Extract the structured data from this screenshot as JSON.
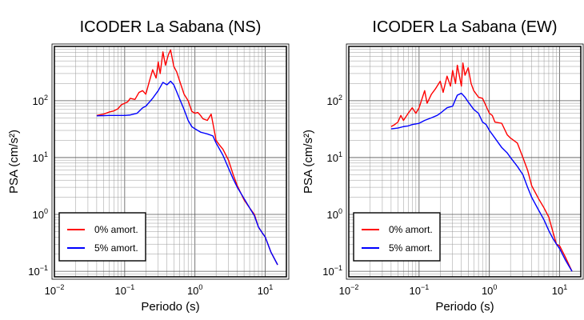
{
  "chart_data": [
    {
      "type": "line",
      "title": "ICODER La Sabana (NS)",
      "xlabel": "Periodo (s)",
      "ylabel": "PSA (cm/s²)",
      "xscale": "log",
      "yscale": "log",
      "xlim": [
        0.01,
        20
      ],
      "ylim": [
        0.08,
        900
      ],
      "grid": true,
      "legend_position": "bottom-left",
      "xticks": [
        {
          "base": "10",
          "exp": "−2",
          "v": 0.01
        },
        {
          "base": "10",
          "exp": "−1",
          "v": 0.1
        },
        {
          "base": "10",
          "exp": "0",
          "v": 1
        },
        {
          "base": "10",
          "exp": "1",
          "v": 10
        }
      ],
      "yticks": [
        {
          "base": "10",
          "exp": "−1",
          "v": 0.1
        },
        {
          "base": "10",
          "exp": "0",
          "v": 1
        },
        {
          "base": "10",
          "exp": "1",
          "v": 10
        },
        {
          "base": "10",
          "exp": "2",
          "v": 100
        }
      ],
      "series": [
        {
          "name": "0% amort.",
          "color": "#ff0000",
          "points": [
            [
              0.04,
              55
            ],
            [
              0.05,
              58
            ],
            [
              0.06,
              63
            ],
            [
              0.07,
              66
            ],
            [
              0.08,
              72
            ],
            [
              0.09,
              85
            ],
            [
              0.1,
              90
            ],
            [
              0.11,
              95
            ],
            [
              0.12,
              110
            ],
            [
              0.14,
              105
            ],
            [
              0.16,
              140
            ],
            [
              0.18,
              150
            ],
            [
              0.2,
              130
            ],
            [
              0.22,
              200
            ],
            [
              0.25,
              350
            ],
            [
              0.28,
              250
            ],
            [
              0.3,
              480
            ],
            [
              0.32,
              300
            ],
            [
              0.35,
              720
            ],
            [
              0.38,
              420
            ],
            [
              0.42,
              650
            ],
            [
              0.45,
              780
            ],
            [
              0.5,
              400
            ],
            [
              0.55,
              320
            ],
            [
              0.6,
              230
            ],
            [
              0.7,
              130
            ],
            [
              0.8,
              100
            ],
            [
              0.9,
              65
            ],
            [
              1.0,
              60
            ],
            [
              1.1,
              62
            ],
            [
              1.2,
              55
            ],
            [
              1.3,
              48
            ],
            [
              1.5,
              45
            ],
            [
              1.7,
              58
            ],
            [
              1.8,
              40
            ],
            [
              2.0,
              20
            ],
            [
              2.2,
              17
            ],
            [
              2.5,
              14
            ],
            [
              3.0,
              9
            ],
            [
              3.5,
              5
            ],
            [
              4.0,
              3.2
            ],
            [
              5.0,
              1.8
            ],
            [
              6.0,
              1.3
            ],
            [
              7.0,
              1.0
            ],
            [
              8.0,
              0.6
            ],
            [
              9.0,
              0.48
            ],
            [
              10.0,
              0.4
            ],
            [
              12.0,
              0.22
            ],
            [
              15.0,
              0.13
            ]
          ]
        },
        {
          "name": "5% amort.",
          "color": "#0000ff",
          "points": [
            [
              0.04,
              54
            ],
            [
              0.06,
              55
            ],
            [
              0.08,
              55
            ],
            [
              0.1,
              55
            ],
            [
              0.12,
              56
            ],
            [
              0.15,
              60
            ],
            [
              0.18,
              75
            ],
            [
              0.2,
              80
            ],
            [
              0.25,
              110
            ],
            [
              0.3,
              150
            ],
            [
              0.35,
              210
            ],
            [
              0.4,
              190
            ],
            [
              0.45,
              220
            ],
            [
              0.5,
              190
            ],
            [
              0.6,
              110
            ],
            [
              0.7,
              70
            ],
            [
              0.8,
              45
            ],
            [
              0.9,
              35
            ],
            [
              1.0,
              32
            ],
            [
              1.2,
              28
            ],
            [
              1.5,
              26
            ],
            [
              1.8,
              24
            ],
            [
              2.0,
              18
            ],
            [
              2.5,
              11
            ],
            [
              3.0,
              6.5
            ],
            [
              3.5,
              4.2
            ],
            [
              4.0,
              3.0
            ],
            [
              5.0,
              1.9
            ],
            [
              6.0,
              1.3
            ],
            [
              7.0,
              0.95
            ],
            [
              8.0,
              0.6
            ],
            [
              9.0,
              0.48
            ],
            [
              10.0,
              0.4
            ],
            [
              12.0,
              0.22
            ],
            [
              15.0,
              0.13
            ]
          ]
        }
      ]
    },
    {
      "type": "line",
      "title": "ICODER La Sabana (EW)",
      "xlabel": "Periodo (s)",
      "ylabel": "PSA (cm/s²)",
      "xscale": "log",
      "yscale": "log",
      "xlim": [
        0.01,
        20
      ],
      "ylim": [
        0.08,
        900
      ],
      "grid": true,
      "legend_position": "bottom-left",
      "xticks": [
        {
          "base": "10",
          "exp": "−2",
          "v": 0.01
        },
        {
          "base": "10",
          "exp": "−1",
          "v": 0.1
        },
        {
          "base": "10",
          "exp": "0",
          "v": 1
        },
        {
          "base": "10",
          "exp": "1",
          "v": 10
        }
      ],
      "yticks": [
        {
          "base": "10",
          "exp": "−1",
          "v": 0.1
        },
        {
          "base": "10",
          "exp": "0",
          "v": 1
        },
        {
          "base": "10",
          "exp": "1",
          "v": 10
        },
        {
          "base": "10",
          "exp": "2",
          "v": 100
        }
      ],
      "series": [
        {
          "name": "0% amort.",
          "color": "#ff0000",
          "points": [
            [
              0.04,
              35
            ],
            [
              0.045,
              38
            ],
            [
              0.05,
              42
            ],
            [
              0.055,
              55
            ],
            [
              0.06,
              45
            ],
            [
              0.07,
              60
            ],
            [
              0.08,
              75
            ],
            [
              0.09,
              60
            ],
            [
              0.1,
              75
            ],
            [
              0.12,
              150
            ],
            [
              0.13,
              90
            ],
            [
              0.15,
              130
            ],
            [
              0.17,
              160
            ],
            [
              0.2,
              220
            ],
            [
              0.22,
              140
            ],
            [
              0.25,
              270
            ],
            [
              0.28,
              180
            ],
            [
              0.3,
              340
            ],
            [
              0.33,
              200
            ],
            [
              0.35,
              420
            ],
            [
              0.4,
              180
            ],
            [
              0.42,
              460
            ],
            [
              0.45,
              280
            ],
            [
              0.5,
              380
            ],
            [
              0.55,
              200
            ],
            [
              0.6,
              150
            ],
            [
              0.7,
              115
            ],
            [
              0.8,
              110
            ],
            [
              0.9,
              80
            ],
            [
              1.0,
              60
            ],
            [
              1.1,
              55
            ],
            [
              1.2,
              42
            ],
            [
              1.5,
              40
            ],
            [
              1.8,
              25
            ],
            [
              2.0,
              22
            ],
            [
              2.5,
              18
            ],
            [
              3.0,
              10
            ],
            [
              3.5,
              6
            ],
            [
              4.0,
              3.2
            ],
            [
              5.0,
              1.9
            ],
            [
              6.0,
              1.3
            ],
            [
              7.0,
              0.9
            ],
            [
              8.0,
              0.5
            ],
            [
              9.0,
              0.3
            ],
            [
              10.0,
              0.28
            ],
            [
              12.0,
              0.18
            ],
            [
              15.0,
              0.1
            ]
          ]
        },
        {
          "name": "5% amort.",
          "color": "#0000ff",
          "points": [
            [
              0.04,
              32
            ],
            [
              0.05,
              33
            ],
            [
              0.06,
              35
            ],
            [
              0.07,
              36
            ],
            [
              0.08,
              38
            ],
            [
              0.1,
              40
            ],
            [
              0.12,
              45
            ],
            [
              0.15,
              50
            ],
            [
              0.18,
              55
            ],
            [
              0.2,
              60
            ],
            [
              0.25,
              75
            ],
            [
              0.3,
              80
            ],
            [
              0.35,
              125
            ],
            [
              0.4,
              135
            ],
            [
              0.45,
              115
            ],
            [
              0.5,
              95
            ],
            [
              0.6,
              70
            ],
            [
              0.7,
              60
            ],
            [
              0.8,
              42
            ],
            [
              0.9,
              38
            ],
            [
              1.0,
              30
            ],
            [
              1.2,
              22
            ],
            [
              1.5,
              15
            ],
            [
              1.8,
              12
            ],
            [
              2.0,
              10
            ],
            [
              2.5,
              7
            ],
            [
              3.0,
              5
            ],
            [
              3.5,
              3
            ],
            [
              4.0,
              2.0
            ],
            [
              5.0,
              1.2
            ],
            [
              6.0,
              0.8
            ],
            [
              7.0,
              0.52
            ],
            [
              8.0,
              0.38
            ],
            [
              9.0,
              0.3
            ],
            [
              10.0,
              0.25
            ],
            [
              12.0,
              0.16
            ],
            [
              15.0,
              0.1
            ]
          ]
        }
      ]
    }
  ]
}
